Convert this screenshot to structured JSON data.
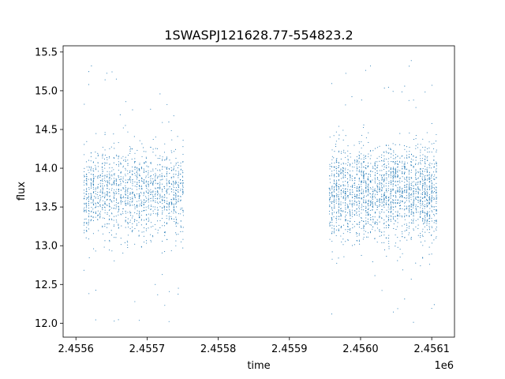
{
  "chart_data": {
    "type": "scatter",
    "title": "1SWASPJ121628.77-554823.2",
    "xlabel": "time",
    "ylabel": "flux",
    "x_offset_label": "1e6",
    "xlim": [
      2455582,
      2456132
    ],
    "ylim": [
      11.82,
      15.58
    ],
    "x_ticks": [
      2455600,
      2455700,
      2455800,
      2455900,
      2456000,
      2456100
    ],
    "x_tick_labels": [
      "2.4556",
      "2.4557",
      "2.4558",
      "2.4559",
      "2.4560",
      "2.4561"
    ],
    "y_ticks": [
      12.0,
      12.5,
      13.0,
      13.5,
      14.0,
      14.5,
      15.0,
      15.5
    ],
    "y_tick_labels": [
      "12.0",
      "12.5",
      "13.0",
      "13.5",
      "14.0",
      "14.5",
      "15.0",
      "15.5"
    ],
    "grid": false,
    "legend": "none",
    "point_color": "#1f77b4",
    "series": [
      {
        "segments": [
          {
            "x_range": [
              2455610,
              2455752
            ],
            "flux_center": 13.7,
            "flux_spread": 0.28,
            "n_points": 1500
          },
          {
            "x_range": [
              2455955,
              2456108
            ],
            "flux_center": 13.7,
            "flux_spread": 0.3,
            "n_points": 2200
          }
        ],
        "outlier_range": [
          12.0,
          15.4
        ]
      }
    ]
  }
}
